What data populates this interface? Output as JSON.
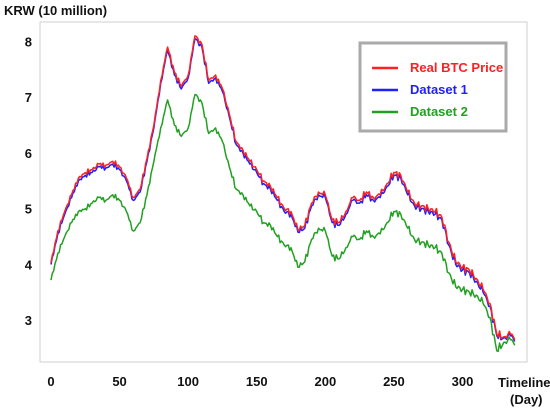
{
  "chart_data": {
    "type": "line",
    "ylabel": "KRW (10 million)",
    "xlabel_line1": "Timeline",
    "xlabel_line2": "(Day)",
    "xlim": [
      -8,
      347
    ],
    "ylim": [
      2.25,
      8.35
    ],
    "xticks": [
      0,
      50,
      100,
      150,
      200,
      250,
      300
    ],
    "yticks": [
      3,
      4,
      5,
      6,
      7,
      8
    ],
    "grid": false,
    "legend_position": "top-right",
    "series": [
      {
        "name": "Real BTC Price",
        "color": "#ff2020",
        "points": [
          [
            0,
            4.03
          ],
          [
            5,
            4.6
          ],
          [
            10,
            4.95
          ],
          [
            15,
            5.25
          ],
          [
            20,
            5.55
          ],
          [
            25,
            5.65
          ],
          [
            30,
            5.7
          ],
          [
            35,
            5.8
          ],
          [
            40,
            5.78
          ],
          [
            45,
            5.85
          ],
          [
            50,
            5.75
          ],
          [
            55,
            5.55
          ],
          [
            60,
            5.2
          ],
          [
            65,
            5.35
          ],
          [
            70,
            5.9
          ],
          [
            75,
            6.5
          ],
          [
            80,
            7.3
          ],
          [
            85,
            7.9
          ],
          [
            90,
            7.45
          ],
          [
            95,
            7.2
          ],
          [
            100,
            7.4
          ],
          [
            105,
            8.1
          ],
          [
            110,
            7.95
          ],
          [
            115,
            7.3
          ],
          [
            120,
            7.4
          ],
          [
            125,
            7.15
          ],
          [
            130,
            6.7
          ],
          [
            135,
            6.2
          ],
          [
            140,
            6.05
          ],
          [
            145,
            5.85
          ],
          [
            150,
            5.7
          ],
          [
            155,
            5.5
          ],
          [
            160,
            5.4
          ],
          [
            165,
            5.2
          ],
          [
            170,
            5.0
          ],
          [
            175,
            4.95
          ],
          [
            180,
            4.62
          ],
          [
            185,
            4.7
          ],
          [
            190,
            5.1
          ],
          [
            195,
            5.3
          ],
          [
            200,
            5.25
          ],
          [
            205,
            4.8
          ],
          [
            210,
            4.75
          ],
          [
            215,
            4.95
          ],
          [
            220,
            5.2
          ],
          [
            225,
            5.15
          ],
          [
            230,
            5.3
          ],
          [
            235,
            5.2
          ],
          [
            240,
            5.25
          ],
          [
            245,
            5.45
          ],
          [
            250,
            5.65
          ],
          [
            255,
            5.6
          ],
          [
            260,
            5.3
          ],
          [
            265,
            5.1
          ],
          [
            270,
            5.05
          ],
          [
            275,
            5.0
          ],
          [
            280,
            4.95
          ],
          [
            285,
            4.85
          ],
          [
            290,
            4.4
          ],
          [
            295,
            4.05
          ],
          [
            300,
            3.95
          ],
          [
            305,
            3.9
          ],
          [
            310,
            3.75
          ],
          [
            315,
            3.55
          ],
          [
            320,
            3.3
          ],
          [
            325,
            2.75
          ],
          [
            330,
            2.7
          ],
          [
            335,
            2.75
          ],
          [
            338,
            2.65
          ]
        ]
      },
      {
        "name": "Dataset 1",
        "color": "#2020ff",
        "points": [
          [
            0,
            4.0
          ],
          [
            5,
            4.55
          ],
          [
            10,
            4.9
          ],
          [
            15,
            5.2
          ],
          [
            20,
            5.5
          ],
          [
            25,
            5.6
          ],
          [
            30,
            5.65
          ],
          [
            35,
            5.75
          ],
          [
            40,
            5.73
          ],
          [
            45,
            5.8
          ],
          [
            50,
            5.7
          ],
          [
            55,
            5.5
          ],
          [
            60,
            5.15
          ],
          [
            65,
            5.3
          ],
          [
            70,
            5.85
          ],
          [
            75,
            6.45
          ],
          [
            80,
            7.25
          ],
          [
            85,
            7.85
          ],
          [
            90,
            7.4
          ],
          [
            95,
            7.15
          ],
          [
            100,
            7.35
          ],
          [
            105,
            8.05
          ],
          [
            110,
            7.9
          ],
          [
            115,
            7.25
          ],
          [
            120,
            7.35
          ],
          [
            125,
            7.1
          ],
          [
            130,
            6.65
          ],
          [
            135,
            6.15
          ],
          [
            140,
            6.0
          ],
          [
            145,
            5.8
          ],
          [
            150,
            5.65
          ],
          [
            155,
            5.45
          ],
          [
            160,
            5.35
          ],
          [
            165,
            5.15
          ],
          [
            170,
            4.95
          ],
          [
            175,
            4.9
          ],
          [
            180,
            4.58
          ],
          [
            185,
            4.65
          ],
          [
            190,
            5.05
          ],
          [
            195,
            5.25
          ],
          [
            200,
            5.2
          ],
          [
            205,
            4.75
          ],
          [
            210,
            4.7
          ],
          [
            215,
            4.9
          ],
          [
            220,
            5.15
          ],
          [
            225,
            5.1
          ],
          [
            230,
            5.25
          ],
          [
            235,
            5.15
          ],
          [
            240,
            5.2
          ],
          [
            245,
            5.4
          ],
          [
            250,
            5.6
          ],
          [
            255,
            5.55
          ],
          [
            260,
            5.25
          ],
          [
            265,
            5.05
          ],
          [
            270,
            5.0
          ],
          [
            275,
            4.95
          ],
          [
            280,
            4.9
          ],
          [
            285,
            4.8
          ],
          [
            290,
            4.35
          ],
          [
            295,
            4.0
          ],
          [
            300,
            3.9
          ],
          [
            305,
            3.85
          ],
          [
            310,
            3.7
          ],
          [
            315,
            3.5
          ],
          [
            320,
            3.25
          ],
          [
            325,
            2.72
          ],
          [
            330,
            2.68
          ],
          [
            335,
            2.72
          ],
          [
            338,
            2.62
          ]
        ]
      },
      {
        "name": "Dataset 2",
        "color": "#22a022",
        "points": [
          [
            0,
            3.72
          ],
          [
            5,
            4.2
          ],
          [
            10,
            4.5
          ],
          [
            15,
            4.75
          ],
          [
            20,
            4.95
          ],
          [
            25,
            5.0
          ],
          [
            30,
            5.1
          ],
          [
            35,
            5.2
          ],
          [
            40,
            5.15
          ],
          [
            45,
            5.25
          ],
          [
            50,
            5.15
          ],
          [
            55,
            4.95
          ],
          [
            60,
            4.6
          ],
          [
            65,
            4.75
          ],
          [
            70,
            5.25
          ],
          [
            75,
            5.85
          ],
          [
            80,
            6.45
          ],
          [
            85,
            6.95
          ],
          [
            90,
            6.5
          ],
          [
            95,
            6.3
          ],
          [
            100,
            6.45
          ],
          [
            105,
            7.05
          ],
          [
            110,
            6.9
          ],
          [
            115,
            6.35
          ],
          [
            120,
            6.45
          ],
          [
            125,
            6.2
          ],
          [
            130,
            5.75
          ],
          [
            135,
            5.35
          ],
          [
            140,
            5.25
          ],
          [
            145,
            5.05
          ],
          [
            150,
            4.95
          ],
          [
            155,
            4.75
          ],
          [
            160,
            4.7
          ],
          [
            165,
            4.5
          ],
          [
            170,
            4.35
          ],
          [
            175,
            4.3
          ],
          [
            180,
            3.95
          ],
          [
            185,
            4.05
          ],
          [
            190,
            4.45
          ],
          [
            195,
            4.65
          ],
          [
            200,
            4.6
          ],
          [
            205,
            4.15
          ],
          [
            210,
            4.1
          ],
          [
            215,
            4.3
          ],
          [
            220,
            4.5
          ],
          [
            225,
            4.45
          ],
          [
            230,
            4.6
          ],
          [
            235,
            4.5
          ],
          [
            240,
            4.55
          ],
          [
            245,
            4.75
          ],
          [
            250,
            4.95
          ],
          [
            255,
            4.9
          ],
          [
            260,
            4.65
          ],
          [
            265,
            4.45
          ],
          [
            270,
            4.4
          ],
          [
            275,
            4.35
          ],
          [
            280,
            4.3
          ],
          [
            285,
            4.2
          ],
          [
            290,
            3.85
          ],
          [
            295,
            3.6
          ],
          [
            300,
            3.55
          ],
          [
            305,
            3.5
          ],
          [
            310,
            3.45
          ],
          [
            315,
            3.3
          ],
          [
            320,
            3.05
          ],
          [
            325,
            2.45
          ],
          [
            330,
            2.6
          ],
          [
            335,
            2.65
          ],
          [
            338,
            2.55
          ]
        ]
      }
    ]
  }
}
